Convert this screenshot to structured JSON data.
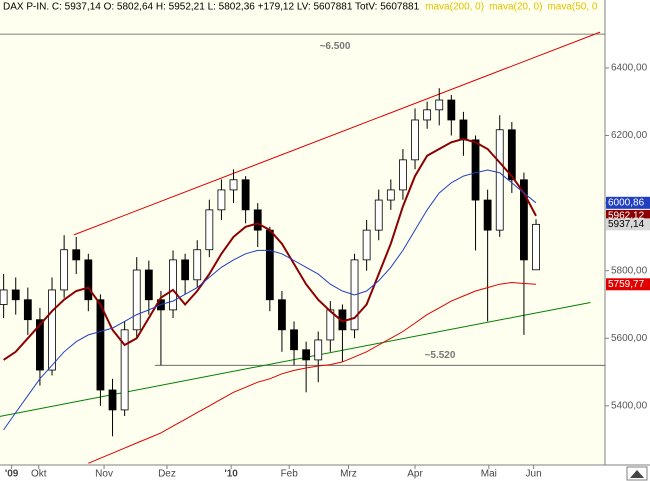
{
  "chart_data": {
    "type": "candlestick",
    "title": "DAX P-IN. C: 5937,14 O: 5802,64 H: 5952,21 L: 5802,36 +179,12 LV: 5607881 TotV: 5607881",
    "x": [
      0,
      1,
      2,
      3,
      4,
      5,
      6,
      7,
      8,
      9,
      10,
      11,
      12,
      13,
      14,
      15,
      16,
      17,
      18,
      19,
      20,
      21,
      22,
      23,
      24,
      25,
      26,
      27,
      28,
      29,
      30,
      31,
      32,
      33,
      34,
      35,
      36,
      37,
      38,
      39,
      40,
      41,
      42,
      43,
      44
    ],
    "open": [
      5700,
      5743,
      5714,
      5655,
      5506,
      5743,
      5862,
      5832,
      5714,
      5447,
      5388,
      5625,
      5802,
      5714,
      5684,
      5832,
      5773,
      5862,
      5980,
      6039,
      6069,
      5980,
      5920,
      5714,
      5625,
      5566,
      5536,
      5595,
      5684,
      5625,
      5832,
      5920,
      6009,
      6039,
      6128,
      6246,
      6276,
      6305,
      6246,
      6187,
      6009,
      5920,
      6217,
      6069,
      5802.64
    ],
    "high": [
      5790,
      5780,
      5750,
      5690,
      5780,
      5905,
      5900,
      5850,
      5730,
      5480,
      5650,
      5840,
      5830,
      5740,
      5860,
      5850,
      5890,
      6010,
      6070,
      6100,
      6080,
      6000,
      5930,
      5740,
      5650,
      5590,
      5620,
      5710,
      5700,
      5850,
      5950,
      6040,
      6070,
      6160,
      6280,
      6300,
      6340,
      6320,
      6270,
      6200,
      6040,
      6260,
      6240,
      6090,
      5952.21
    ],
    "low": [
      5660,
      5670,
      5610,
      5460,
      5490,
      5720,
      5790,
      5680,
      5400,
      5310,
      5370,
      5600,
      5670,
      5520,
      5660,
      5730,
      5750,
      5840,
      5950,
      6000,
      5940,
      5870,
      5680,
      5560,
      5520,
      5440,
      5470,
      5560,
      5530,
      5600,
      5800,
      5890,
      5980,
      6010,
      6100,
      6220,
      6230,
      6200,
      6140,
      5860,
      5650,
      5900,
      6030,
      5610,
      5802.36
    ],
    "close": [
      5743,
      5714,
      5655,
      5506,
      5743,
      5862,
      5832,
      5714,
      5447,
      5388,
      5625,
      5802,
      5714,
      5684,
      5832,
      5773,
      5862,
      5980,
      6039,
      6069,
      5980,
      5920,
      5714,
      5625,
      5566,
      5536,
      5595,
      5684,
      5625,
      5832,
      5920,
      6009,
      6039,
      6128,
      6246,
      6276,
      6305,
      6246,
      6187,
      6009,
      5920,
      6217,
      6069,
      5832,
      5937.14
    ],
    "series": [
      {
        "name": "mava(200, 0)",
        "color": "#e00000",
        "values": [
          null,
          null,
          null,
          null,
          null,
          null,
          null,
          5230,
          5245,
          5260,
          5275,
          5290,
          5305,
          5320,
          5340,
          5360,
          5380,
          5400,
          5420,
          5440,
          5455,
          5470,
          5480,
          5495,
          5505,
          5512,
          5518,
          5522,
          5530,
          5545,
          5560,
          5580,
          5600,
          5620,
          5645,
          5670,
          5690,
          5710,
          5725,
          5740,
          5750,
          5760,
          5765,
          5762,
          5759.77
        ]
      },
      {
        "name": "mava(20, 0)",
        "color": "#8b0000",
        "values": [
          5536,
          5560,
          5600,
          5640,
          5680,
          5714,
          5740,
          5750,
          5700,
          5625,
          5580,
          5600,
          5660,
          5720,
          5743,
          5700,
          5740,
          5790,
          5850,
          5900,
          5930,
          5940,
          5920,
          5880,
          5820,
          5760,
          5714,
          5680,
          5650,
          5660,
          5700,
          5790,
          5880,
          5990,
          6080,
          6140,
          6160,
          6180,
          6190,
          6180,
          6160,
          6120,
          6080,
          6030,
          5962.12
        ]
      },
      {
        "name": "mava(50, 0",
        "color": "#2040c0",
        "values": [
          5329,
          5380,
          5430,
          5480,
          5520,
          5560,
          5590,
          5610,
          5620,
          5630,
          5650,
          5670,
          5684,
          5700,
          5710,
          5730,
          5750,
          5780,
          5810,
          5832,
          5850,
          5860,
          5860,
          5850,
          5830,
          5810,
          5790,
          5760,
          5740,
          5728,
          5740,
          5770,
          5810,
          5860,
          5920,
          5980,
          6030,
          6060,
          6080,
          6090,
          6098,
          6090,
          6060,
          6030,
          6000.86
        ]
      }
    ],
    "legend_color": "#e0c000",
    "xlim": [
      -0.3,
      49.7
    ],
    "xticks": [
      {
        "value": 0.66,
        "label": "'09"
      },
      {
        "value": 2.9,
        "label": "Okt"
      },
      {
        "value": 8.3,
        "label": "Nov"
      },
      {
        "value": 13.5,
        "label": "Dez"
      },
      {
        "value": 18.8,
        "label": "'10"
      },
      {
        "value": 23.6,
        "label": "Feb"
      },
      {
        "value": 28.5,
        "label": "Mrz"
      },
      {
        "value": 34,
        "label": "Apr"
      },
      {
        "value": 40.1,
        "label": "Mai"
      },
      {
        "value": 43.8,
        "label": "Jun"
      }
    ],
    "ylim": [
      5225,
      6601
    ],
    "yticks": [
      {
        "value": 5400,
        "label": "5400,00"
      },
      {
        "value": 5600,
        "label": "5600,00"
      },
      {
        "value": 5800,
        "label": "5800,00"
      },
      {
        "value": 6000,
        "label": "6000,00"
      },
      {
        "value": 6200,
        "label": "6200,00"
      },
      {
        "value": 6400,
        "label": "6400,00"
      }
    ],
    "price_tags": [
      {
        "value": 6000.86,
        "label": "6000,86",
        "color": "#2040c0"
      },
      {
        "value": 5962.12,
        "label": "5962,12",
        "color": "#8b0000"
      },
      {
        "value": 5937.14,
        "label": "5937,14",
        "color": "#d8d8d8"
      },
      {
        "value": 5759.77,
        "label": "5759,77",
        "color": "#e00000"
      }
    ],
    "levels": [
      {
        "value": 6500,
        "label": "~6.500",
        "from": -0.3
      },
      {
        "value": 5520,
        "label": "~5.520",
        "from": 12.5
      }
    ],
    "trendlines": [
      {
        "color": "#e00000",
        "x": [
          5.8,
          49.3
        ],
        "y": [
          5906,
          6506
        ]
      },
      {
        "color": "#008000",
        "x": [
          -0.3,
          48.5
        ],
        "y": [
          5369,
          5706
        ]
      }
    ]
  }
}
